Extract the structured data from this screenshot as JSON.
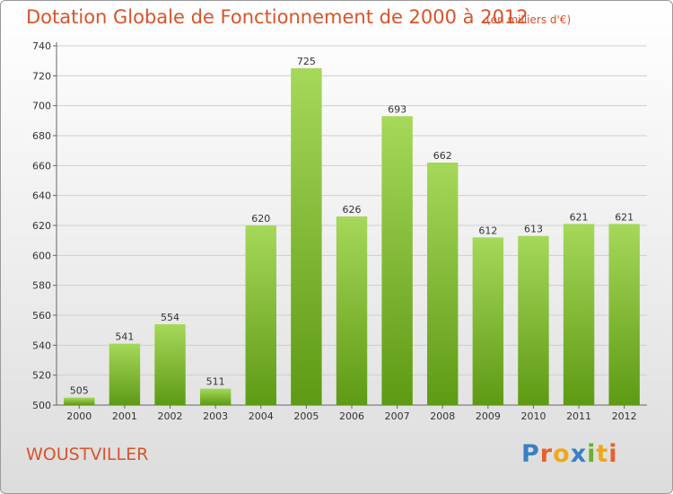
{
  "header": {
    "title": "Dotation Globale de Fonctionnement de 2000 à 2012",
    "subtitle": "(en milliers d'€)"
  },
  "footer": {
    "place": "WOUSTVILLER",
    "logo": "Proxiti"
  },
  "colors": {
    "bar_light": "#a6d85a",
    "bar_dark": "#5e9a14",
    "title": "#d9532a"
  },
  "chart_data": {
    "type": "bar",
    "title": "Dotation Globale de Fonctionnement de 2000 à 2012",
    "subtitle": "(en milliers d'€)",
    "xlabel": "",
    "ylabel": "",
    "categories": [
      "2000",
      "2001",
      "2002",
      "2003",
      "2004",
      "2005",
      "2006",
      "2007",
      "2008",
      "2009",
      "2010",
      "2011",
      "2012"
    ],
    "values": [
      505,
      541,
      554,
      511,
      620,
      725,
      626,
      693,
      662,
      612,
      613,
      621,
      621
    ],
    "ylim": [
      500,
      740
    ],
    "yticks": [
      500,
      520,
      540,
      560,
      580,
      600,
      620,
      640,
      660,
      680,
      700,
      720,
      740
    ],
    "grid": true,
    "data_labels": true
  }
}
